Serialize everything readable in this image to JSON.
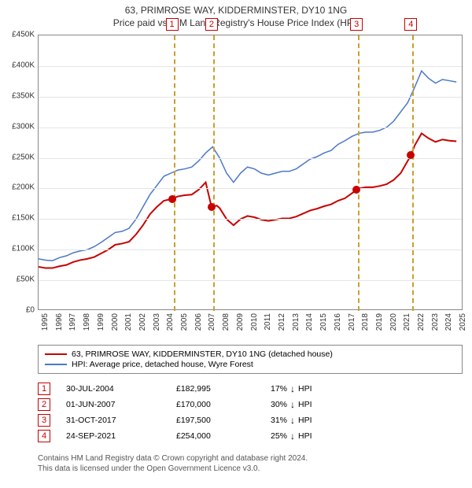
{
  "title": {
    "line1": "63, PRIMROSE WAY, KIDDERMINSTER, DY10 1NG",
    "line2": "Price paid vs. HM Land Registry's House Price Index (HPI)"
  },
  "chart": {
    "type": "line",
    "background_color": "#ffffff",
    "grid_color": "#e5e5e5",
    "border_color": "#888888",
    "x_range": [
      1995,
      2025.5
    ],
    "y_range": [
      0,
      450000
    ],
    "y_ticks": [
      0,
      50000,
      100000,
      150000,
      200000,
      250000,
      300000,
      350000,
      400000,
      450000
    ],
    "y_tick_labels": [
      "£0",
      "£50K",
      "£100K",
      "£150K",
      "£200K",
      "£250K",
      "£300K",
      "£350K",
      "£400K",
      "£450K"
    ],
    "x_ticks": [
      1995,
      1996,
      1997,
      1998,
      1999,
      2000,
      2001,
      2002,
      2003,
      2004,
      2005,
      2006,
      2007,
      2008,
      2009,
      2010,
      2011,
      2012,
      2013,
      2014,
      2015,
      2016,
      2017,
      2018,
      2019,
      2020,
      2021,
      2022,
      2023,
      2024,
      2025
    ],
    "label_fontsize": 10,
    "series": {
      "hpi": {
        "label": "HPI: Average price, detached house, Wyre Forest",
        "color": "#4a78c8",
        "width": 1.5,
        "points": [
          [
            1995.0,
            85000
          ],
          [
            1995.5,
            83000
          ],
          [
            1996.0,
            82000
          ],
          [
            1996.5,
            87000
          ],
          [
            1997.0,
            90000
          ],
          [
            1997.5,
            95000
          ],
          [
            1998.0,
            98000
          ],
          [
            1998.5,
            100000
          ],
          [
            1999.0,
            105000
          ],
          [
            1999.5,
            112000
          ],
          [
            2000.0,
            120000
          ],
          [
            2000.5,
            128000
          ],
          [
            2001.0,
            130000
          ],
          [
            2001.5,
            135000
          ],
          [
            2002.0,
            150000
          ],
          [
            2002.5,
            170000
          ],
          [
            2003.0,
            190000
          ],
          [
            2003.5,
            205000
          ],
          [
            2004.0,
            220000
          ],
          [
            2004.5,
            225000
          ],
          [
            2005.0,
            230000
          ],
          [
            2005.5,
            232000
          ],
          [
            2006.0,
            235000
          ],
          [
            2006.5,
            245000
          ],
          [
            2007.0,
            258000
          ],
          [
            2007.5,
            268000
          ],
          [
            2008.0,
            250000
          ],
          [
            2008.5,
            225000
          ],
          [
            2009.0,
            210000
          ],
          [
            2009.5,
            225000
          ],
          [
            2010.0,
            235000
          ],
          [
            2010.5,
            232000
          ],
          [
            2011.0,
            225000
          ],
          [
            2011.5,
            222000
          ],
          [
            2012.0,
            225000
          ],
          [
            2012.5,
            228000
          ],
          [
            2013.0,
            228000
          ],
          [
            2013.5,
            232000
          ],
          [
            2014.0,
            240000
          ],
          [
            2014.5,
            248000
          ],
          [
            2015.0,
            252000
          ],
          [
            2015.5,
            258000
          ],
          [
            2016.0,
            262000
          ],
          [
            2016.5,
            272000
          ],
          [
            2017.0,
            278000
          ],
          [
            2017.5,
            285000
          ],
          [
            2018.0,
            290000
          ],
          [
            2018.5,
            292000
          ],
          [
            2019.0,
            292000
          ],
          [
            2019.5,
            295000
          ],
          [
            2020.0,
            300000
          ],
          [
            2020.5,
            310000
          ],
          [
            2021.0,
            325000
          ],
          [
            2021.5,
            340000
          ],
          [
            2022.0,
            365000
          ],
          [
            2022.5,
            392000
          ],
          [
            2023.0,
            380000
          ],
          [
            2023.5,
            372000
          ],
          [
            2024.0,
            378000
          ],
          [
            2024.5,
            376000
          ],
          [
            2025.0,
            374000
          ]
        ]
      },
      "property": {
        "label": "63, PRIMROSE WAY, KIDDERMINSTER, DY10 1NG (detached house)",
        "color": "#c80000",
        "width": 2,
        "points": [
          [
            1995.0,
            72000
          ],
          [
            1995.5,
            70000
          ],
          [
            1996.0,
            70000
          ],
          [
            1996.5,
            73000
          ],
          [
            1997.0,
            75000
          ],
          [
            1997.5,
            80000
          ],
          [
            1998.0,
            83000
          ],
          [
            1998.5,
            85000
          ],
          [
            1999.0,
            88000
          ],
          [
            1999.5,
            94000
          ],
          [
            2000.0,
            100000
          ],
          [
            2000.5,
            108000
          ],
          [
            2001.0,
            110000
          ],
          [
            2001.5,
            113000
          ],
          [
            2002.0,
            125000
          ],
          [
            2002.5,
            140000
          ],
          [
            2003.0,
            158000
          ],
          [
            2003.5,
            170000
          ],
          [
            2004.0,
            180000
          ],
          [
            2004.58,
            182995
          ],
          [
            2005.0,
            187000
          ],
          [
            2005.5,
            189000
          ],
          [
            2006.0,
            190000
          ],
          [
            2006.5,
            198000
          ],
          [
            2007.0,
            210000
          ],
          [
            2007.42,
            170000
          ],
          [
            2007.8,
            172000
          ],
          [
            2008.0,
            168000
          ],
          [
            2008.5,
            150000
          ],
          [
            2009.0,
            140000
          ],
          [
            2009.5,
            150000
          ],
          [
            2010.0,
            155000
          ],
          [
            2010.5,
            153000
          ],
          [
            2011.0,
            149000
          ],
          [
            2011.5,
            147000
          ],
          [
            2012.0,
            149000
          ],
          [
            2012.5,
            151000
          ],
          [
            2013.0,
            151000
          ],
          [
            2013.5,
            154000
          ],
          [
            2014.0,
            159000
          ],
          [
            2014.5,
            164000
          ],
          [
            2015.0,
            167000
          ],
          [
            2015.5,
            171000
          ],
          [
            2016.0,
            174000
          ],
          [
            2016.5,
            180000
          ],
          [
            2017.0,
            184000
          ],
          [
            2017.83,
            197500
          ],
          [
            2018.0,
            200000
          ],
          [
            2018.5,
            202000
          ],
          [
            2019.0,
            202000
          ],
          [
            2019.5,
            204000
          ],
          [
            2020.0,
            207000
          ],
          [
            2020.5,
            214000
          ],
          [
            2021.0,
            225000
          ],
          [
            2021.73,
            254000
          ],
          [
            2022.0,
            270000
          ],
          [
            2022.5,
            290000
          ],
          [
            2023.0,
            282000
          ],
          [
            2023.5,
            276000
          ],
          [
            2024.0,
            280000
          ],
          [
            2024.5,
            278000
          ],
          [
            2025.0,
            277000
          ]
        ]
      }
    },
    "sales": [
      {
        "n": "1",
        "year": 2004.58,
        "value": 182995,
        "date": "30-JUL-2004",
        "price": "£182,995",
        "diff": "17%",
        "dir": "↓",
        "vs": "HPI",
        "dash_color": "#c8a030"
      },
      {
        "n": "2",
        "year": 2007.42,
        "value": 170000,
        "date": "01-JUN-2007",
        "price": "£170,000",
        "diff": "30%",
        "dir": "↓",
        "vs": "HPI",
        "dash_color": "#c8a030"
      },
      {
        "n": "3",
        "year": 2017.83,
        "value": 197500,
        "date": "31-OCT-2017",
        "price": "£197,500",
        "diff": "31%",
        "dir": "↓",
        "vs": "HPI",
        "dash_color": "#c8a030"
      },
      {
        "n": "4",
        "year": 2021.73,
        "value": 254000,
        "date": "24-SEP-2021",
        "price": "£254,000",
        "diff": "25%",
        "dir": "↓",
        "vs": "HPI",
        "dash_color": "#c8a030"
      }
    ]
  },
  "legend": {
    "items": [
      {
        "color": "#c80000",
        "label": "63, PRIMROSE WAY, KIDDERMINSTER, DY10 1NG (detached house)"
      },
      {
        "color": "#4a78c8",
        "label": "HPI: Average price, detached house, Wyre Forest"
      }
    ]
  },
  "footnote": {
    "line1": "Contains HM Land Registry data © Crown copyright and database right 2024.",
    "line2": "This data is licensed under the Open Government Licence v3.0."
  }
}
